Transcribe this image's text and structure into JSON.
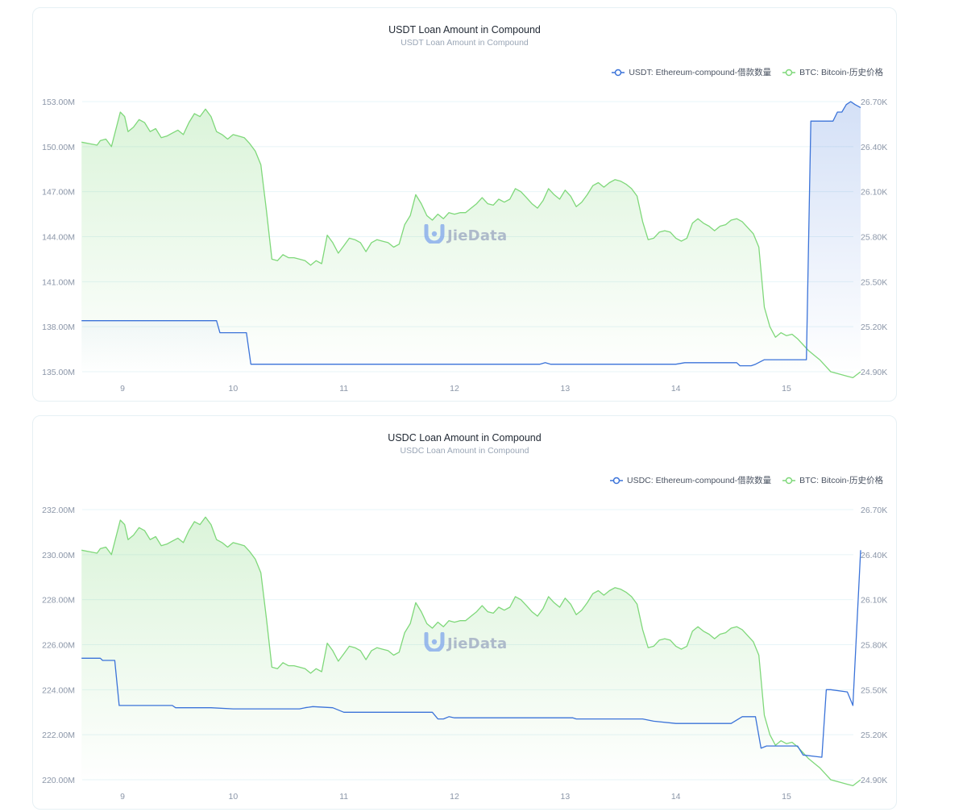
{
  "charts": [
    {
      "title": "USDT Loan Amount in Compound",
      "subtitle": "USDT Loan Amount in Compound",
      "watermark": "JieData",
      "legend": [
        {
          "label": "USDT: Ethereum-compound-借款数量",
          "color": "#3b73d9"
        },
        {
          "label": "BTC: Bitcoin-历史价格",
          "color": "#7fd87a"
        }
      ],
      "left_ticks": [
        "153.00M",
        "150.00M",
        "147.00M",
        "144.00M",
        "141.00M",
        "138.00M",
        "135.00M"
      ],
      "right_ticks": [
        "26.70K",
        "26.40K",
        "26.10K",
        "25.80K",
        "25.50K",
        "25.20K",
        "24.90K"
      ],
      "x_ticks": [
        "9",
        "10",
        "11",
        "12",
        "13",
        "14",
        "15"
      ],
      "colors": {
        "usd": "#3b73d9",
        "btc": "#7fd87a",
        "grid": "#e7f4f8"
      }
    },
    {
      "title": "USDC Loan Amount in Compound",
      "subtitle": "USDC Loan Amount in Compound",
      "watermark": "JieData",
      "legend": [
        {
          "label": "USDC: Ethereum-compound-借款数量",
          "color": "#3b73d9"
        },
        {
          "label": "BTC: Bitcoin-历史价格",
          "color": "#7fd87a"
        }
      ],
      "left_ticks": [
        "232.00M",
        "230.00M",
        "228.00M",
        "226.00M",
        "224.00M",
        "222.00M",
        "220.00M"
      ],
      "right_ticks": [
        "26.70K",
        "26.40K",
        "26.10K",
        "25.80K",
        "25.50K",
        "25.20K",
        "24.90K"
      ],
      "x_ticks": [
        "9",
        "10",
        "11",
        "12",
        "13",
        "14",
        "15"
      ],
      "colors": {
        "usd": "#3b73d9",
        "btc": "#7fd87a",
        "grid": "#e7f4f8"
      }
    }
  ],
  "chart_data": [
    {
      "type": "line",
      "title": "USDT Loan Amount in Compound",
      "subtitle": "USDT Loan Amount in Compound",
      "x_range": [
        8.63,
        15.67
      ],
      "ylim_left": [
        135000000,
        153000000
      ],
      "ylim_right": [
        24900,
        26700
      ],
      "grid": true,
      "legend_position": "top-right",
      "series": [
        {
          "name": "USDT: Ethereum-compound-借款数量",
          "axis": "left",
          "fill": true,
          "x": [
            8.63,
            9.85,
            9.88,
            10.12,
            10.16,
            10.5,
            11.0,
            11.5,
            12.0,
            12.5,
            12.77,
            12.82,
            12.87,
            13.0,
            13.5,
            14.0,
            14.08,
            14.55,
            14.58,
            14.68,
            14.72,
            14.8,
            15.1,
            15.18,
            15.22,
            15.42,
            15.46,
            15.5,
            15.54,
            15.58,
            15.62,
            15.67
          ],
          "y": [
            138400000.0,
            138400000.0,
            137600000.0,
            137600000.0,
            135500000.0,
            135500000.0,
            135500000.0,
            135500000.0,
            135500000.0,
            135500000.0,
            135500000.0,
            135600000.0,
            135500000.0,
            135500000.0,
            135500000.0,
            135500000.0,
            135600000.0,
            135600000.0,
            135400000.0,
            135400000.0,
            135500000.0,
            135800000.0,
            135800000.0,
            135800000.0,
            151700000.0,
            151700000.0,
            152300000.0,
            152300000.0,
            152800000.0,
            153000000.0,
            152800000.0,
            152600000.0
          ]
        },
        {
          "name": "BTC: Bitcoin-历史价格",
          "axis": "right",
          "fill": true,
          "x": [
            8.63,
            8.7,
            8.77,
            8.8,
            8.85,
            8.9,
            8.98,
            9.02,
            9.05,
            9.1,
            9.15,
            9.2,
            9.25,
            9.3,
            9.35,
            9.4,
            9.45,
            9.5,
            9.55,
            9.6,
            9.65,
            9.7,
            9.75,
            9.8,
            9.85,
            9.9,
            9.95,
            10.0,
            10.05,
            10.1,
            10.15,
            10.2,
            10.25,
            10.3,
            10.35,
            10.4,
            10.45,
            10.5,
            10.55,
            10.6,
            10.65,
            10.7,
            10.75,
            10.8,
            10.85,
            10.9,
            10.95,
            11.0,
            11.05,
            11.1,
            11.15,
            11.2,
            11.25,
            11.3,
            11.35,
            11.4,
            11.45,
            11.5,
            11.55,
            11.6,
            11.65,
            11.7,
            11.75,
            11.8,
            11.85,
            11.9,
            11.95,
            12.0,
            12.05,
            12.1,
            12.15,
            12.2,
            12.25,
            12.3,
            12.35,
            12.4,
            12.45,
            12.5,
            12.55,
            12.6,
            12.65,
            12.7,
            12.75,
            12.8,
            12.85,
            12.9,
            12.95,
            13.0,
            13.05,
            13.1,
            13.15,
            13.2,
            13.25,
            13.3,
            13.35,
            13.4,
            13.45,
            13.5,
            13.55,
            13.6,
            13.65,
            13.7,
            13.75,
            13.8,
            13.85,
            13.9,
            13.95,
            14.0,
            14.05,
            14.1,
            14.15,
            14.2,
            14.25,
            14.3,
            14.35,
            14.4,
            14.45,
            14.5,
            14.55,
            14.6,
            14.65,
            14.7,
            14.75,
            14.8,
            14.85,
            14.9,
            14.95,
            15.0,
            15.05,
            15.1,
            15.15,
            15.2,
            15.25,
            15.3,
            15.35,
            15.4,
            15.45,
            15.5,
            15.55,
            15.6,
            15.67
          ],
          "y": [
            26430,
            26420,
            26410,
            26440,
            26450,
            26400,
            26630,
            26600,
            26500,
            26530,
            26580,
            26560,
            26500,
            26520,
            26460,
            26470,
            26490,
            26510,
            26480,
            26560,
            26620,
            26600,
            26650,
            26600,
            26500,
            26480,
            26450,
            26480,
            26470,
            26460,
            26420,
            26370,
            26280,
            25980,
            25650,
            25640,
            25680,
            25660,
            25660,
            25650,
            25640,
            25610,
            25640,
            25620,
            25810,
            25760,
            25690,
            25740,
            25790,
            25780,
            25760,
            25700,
            25760,
            25780,
            25770,
            25760,
            25730,
            25750,
            25880,
            25940,
            26080,
            26020,
            25940,
            25910,
            25950,
            25920,
            25960,
            25950,
            25960,
            25960,
            25990,
            26020,
            26060,
            26020,
            26010,
            26050,
            26030,
            26050,
            26120,
            26100,
            26060,
            26020,
            25990,
            26040,
            26120,
            26080,
            26050,
            26110,
            26070,
            26000,
            26030,
            26080,
            26140,
            26160,
            26130,
            26160,
            26180,
            26170,
            26150,
            26120,
            26070,
            25900,
            25780,
            25790,
            25830,
            25840,
            25830,
            25790,
            25770,
            25790,
            25890,
            25920,
            25890,
            25870,
            25840,
            25870,
            25880,
            25910,
            25920,
            25900,
            25860,
            25820,
            25730,
            25330,
            25200,
            25130,
            25160,
            25140,
            25150,
            25120,
            25080,
            25040,
            25010,
            24980,
            24940,
            24900,
            24890,
            24880,
            24870,
            24860,
            24900
          ]
        }
      ]
    },
    {
      "type": "line",
      "title": "USDC Loan Amount in Compound",
      "subtitle": "USDC Loan Amount in Compound",
      "x_range": [
        8.63,
        15.67
      ],
      "ylim_left": [
        220000000,
        232000000
      ],
      "ylim_right": [
        24900,
        26700
      ],
      "grid": true,
      "legend_position": "top-right",
      "series": [
        {
          "name": "USDC: Ethereum-compound-借款数量",
          "axis": "left",
          "fill": false,
          "x": [
            8.63,
            8.8,
            8.82,
            8.93,
            8.97,
            9.0,
            9.45,
            9.48,
            9.8,
            10.0,
            10.3,
            10.6,
            10.65,
            10.72,
            10.9,
            11.0,
            11.05,
            11.5,
            11.8,
            11.85,
            11.9,
            11.95,
            12.0,
            12.3,
            12.6,
            12.9,
            13.07,
            13.1,
            13.5,
            13.7,
            13.8,
            14.0,
            14.1,
            14.5,
            14.6,
            14.72,
            14.77,
            14.82,
            15.0,
            15.1,
            15.15,
            15.32,
            15.36,
            15.4,
            15.55,
            15.6,
            15.67
          ],
          "y": [
            225400000.0,
            225400000.0,
            225300000.0,
            225300000.0,
            223300000.0,
            223300000.0,
            223300000.0,
            223200000.0,
            223200000.0,
            223150000.0,
            223150000.0,
            223150000.0,
            223200000.0,
            223250000.0,
            223200000.0,
            223000000.0,
            223000000.0,
            223000000.0,
            223000000.0,
            222700000.0,
            222700000.0,
            222800000.0,
            222750000.0,
            222750000.0,
            222750000.0,
            222750000.0,
            222750000.0,
            222700000.0,
            222700000.0,
            222700000.0,
            222600000.0,
            222500000.0,
            222500000.0,
            222500000.0,
            222800000.0,
            222800000.0,
            221400000.0,
            221500000.0,
            221500000.0,
            221500000.0,
            221100000.0,
            221000000.0,
            224000000.0,
            224000000.0,
            223900000.0,
            223300000.0,
            230200000.0
          ]
        },
        {
          "name": "BTC: Bitcoin-历史价格",
          "axis": "right",
          "fill": true,
          "x": [
            8.63,
            8.7,
            8.77,
            8.8,
            8.85,
            8.9,
            8.98,
            9.02,
            9.05,
            9.1,
            9.15,
            9.2,
            9.25,
            9.3,
            9.35,
            9.4,
            9.45,
            9.5,
            9.55,
            9.6,
            9.65,
            9.7,
            9.75,
            9.8,
            9.85,
            9.9,
            9.95,
            10.0,
            10.05,
            10.1,
            10.15,
            10.2,
            10.25,
            10.3,
            10.35,
            10.4,
            10.45,
            10.5,
            10.55,
            10.6,
            10.65,
            10.7,
            10.75,
            10.8,
            10.85,
            10.9,
            10.95,
            11.0,
            11.05,
            11.1,
            11.15,
            11.2,
            11.25,
            11.3,
            11.35,
            11.4,
            11.45,
            11.5,
            11.55,
            11.6,
            11.65,
            11.7,
            11.75,
            11.8,
            11.85,
            11.9,
            11.95,
            12.0,
            12.05,
            12.1,
            12.15,
            12.2,
            12.25,
            12.3,
            12.35,
            12.4,
            12.45,
            12.5,
            12.55,
            12.6,
            12.65,
            12.7,
            12.75,
            12.8,
            12.85,
            12.9,
            12.95,
            13.0,
            13.05,
            13.1,
            13.15,
            13.2,
            13.25,
            13.3,
            13.35,
            13.4,
            13.45,
            13.5,
            13.55,
            13.6,
            13.65,
            13.7,
            13.75,
            13.8,
            13.85,
            13.9,
            13.95,
            14.0,
            14.05,
            14.1,
            14.15,
            14.2,
            14.25,
            14.3,
            14.35,
            14.4,
            14.45,
            14.5,
            14.55,
            14.6,
            14.65,
            14.7,
            14.75,
            14.8,
            14.85,
            14.9,
            14.95,
            15.0,
            15.05,
            15.1,
            15.15,
            15.2,
            15.25,
            15.3,
            15.35,
            15.4,
            15.45,
            15.5,
            15.55,
            15.6,
            15.67
          ],
          "y": [
            26430,
            26420,
            26410,
            26440,
            26450,
            26400,
            26630,
            26600,
            26500,
            26530,
            26580,
            26560,
            26500,
            26520,
            26460,
            26470,
            26490,
            26510,
            26480,
            26560,
            26620,
            26600,
            26650,
            26600,
            26500,
            26480,
            26450,
            26480,
            26470,
            26460,
            26420,
            26370,
            26280,
            25980,
            25650,
            25640,
            25680,
            25660,
            25660,
            25650,
            25640,
            25610,
            25640,
            25620,
            25810,
            25760,
            25690,
            25740,
            25790,
            25780,
            25760,
            25700,
            25760,
            25780,
            25770,
            25760,
            25730,
            25750,
            25880,
            25940,
            26080,
            26020,
            25940,
            25910,
            25950,
            25920,
            25960,
            25950,
            25960,
            25960,
            25990,
            26020,
            26060,
            26020,
            26010,
            26050,
            26030,
            26050,
            26120,
            26100,
            26060,
            26020,
            25990,
            26040,
            26120,
            26080,
            26050,
            26110,
            26070,
            26000,
            26030,
            26080,
            26140,
            26160,
            26130,
            26160,
            26180,
            26170,
            26150,
            26120,
            26070,
            25900,
            25780,
            25790,
            25830,
            25840,
            25830,
            25790,
            25770,
            25790,
            25890,
            25920,
            25890,
            25870,
            25840,
            25870,
            25880,
            25910,
            25920,
            25900,
            25860,
            25820,
            25730,
            25330,
            25200,
            25130,
            25160,
            25140,
            25150,
            25120,
            25080,
            25040,
            25010,
            24980,
            24940,
            24900,
            24890,
            24880,
            24870,
            24860,
            24900
          ]
        }
      ]
    }
  ]
}
